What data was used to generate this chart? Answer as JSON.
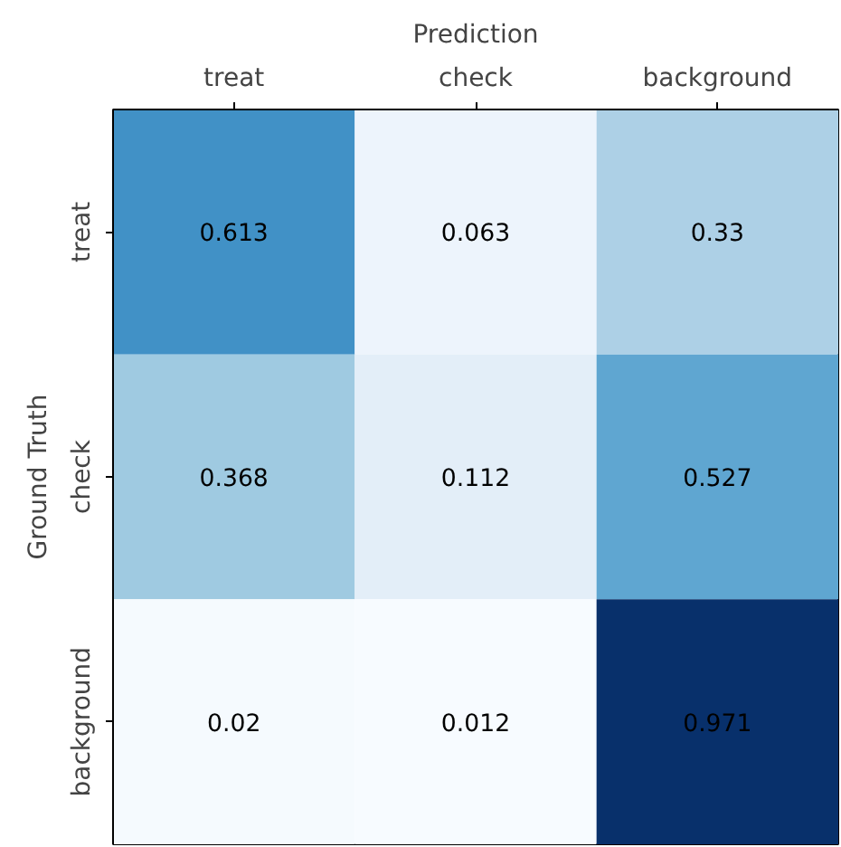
{
  "chart_data": {
    "type": "heatmap",
    "xlabel": "Prediction",
    "ylabel": "Ground Truth",
    "categories": [
      "treat",
      "check",
      "background"
    ],
    "y_categories": [
      "treat",
      "check",
      "background"
    ],
    "cells": [
      [
        0.613,
        0.063,
        0.33
      ],
      [
        0.368,
        0.112,
        0.527
      ],
      [
        0.02,
        0.012,
        0.971
      ]
    ],
    "data_labels": true
  }
}
